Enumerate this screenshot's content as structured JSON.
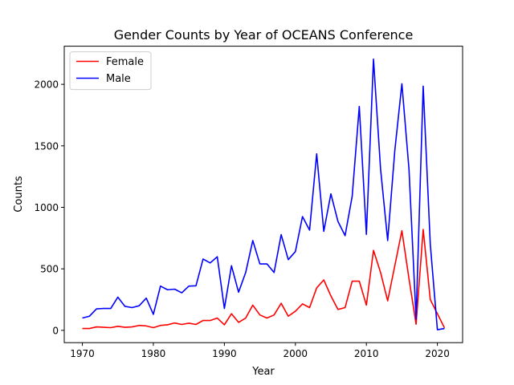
{
  "chart_data": {
    "type": "line",
    "title": "Gender Counts by Year of OCEANS Conference",
    "xlabel": "Year",
    "ylabel": "Counts",
    "xlim": [
      1967.45,
      2023.55
    ],
    "ylim": [
      -100,
      2310
    ],
    "xticks": [
      1970,
      1980,
      1990,
      2000,
      2010,
      2020
    ],
    "yticks": [
      0,
      500,
      1000,
      1500,
      2000
    ],
    "legend_position": "upper-left",
    "grid": false,
    "series": [
      {
        "name": "Female",
        "color": "#ff0000",
        "points": [
          [
            1970,
            15
          ],
          [
            1971,
            15
          ],
          [
            1972,
            28
          ],
          [
            1973,
            25
          ],
          [
            1974,
            22
          ],
          [
            1975,
            33
          ],
          [
            1976,
            25
          ],
          [
            1977,
            28
          ],
          [
            1978,
            40
          ],
          [
            1979,
            36
          ],
          [
            1980,
            22
          ],
          [
            1981,
            40
          ],
          [
            1982,
            45
          ],
          [
            1983,
            60
          ],
          [
            1984,
            48
          ],
          [
            1985,
            58
          ],
          [
            1986,
            48
          ],
          [
            1987,
            80
          ],
          [
            1988,
            80
          ],
          [
            1989,
            100
          ],
          [
            1990,
            45
          ],
          [
            1991,
            135
          ],
          [
            1992,
            65
          ],
          [
            1993,
            100
          ],
          [
            1994,
            205
          ],
          [
            1995,
            125
          ],
          [
            1996,
            100
          ],
          [
            1997,
            125
          ],
          [
            1998,
            220
          ],
          [
            1999,
            115
          ],
          [
            2000,
            155
          ],
          [
            2001,
            215
          ],
          [
            2002,
            185
          ],
          [
            2003,
            345
          ],
          [
            2004,
            410
          ],
          [
            2005,
            280
          ],
          [
            2006,
            170
          ],
          [
            2007,
            185
          ],
          [
            2008,
            400
          ],
          [
            2009,
            400
          ],
          [
            2010,
            205
          ],
          [
            2011,
            650
          ],
          [
            2012,
            470
          ],
          [
            2013,
            240
          ],
          [
            2014,
            525
          ],
          [
            2015,
            810
          ],
          [
            2016,
            420
          ],
          [
            2017,
            50
          ],
          [
            2018,
            820
          ],
          [
            2019,
            250
          ],
          [
            2020,
            135
          ],
          [
            2021,
            20
          ]
        ]
      },
      {
        "name": "Male",
        "color": "#0000ff",
        "points": [
          [
            1970,
            100
          ],
          [
            1971,
            115
          ],
          [
            1972,
            175
          ],
          [
            1973,
            178
          ],
          [
            1974,
            178
          ],
          [
            1975,
            270
          ],
          [
            1976,
            195
          ],
          [
            1977,
            185
          ],
          [
            1978,
            200
          ],
          [
            1979,
            262
          ],
          [
            1980,
            130
          ],
          [
            1981,
            360
          ],
          [
            1982,
            330
          ],
          [
            1983,
            335
          ],
          [
            1984,
            305
          ],
          [
            1985,
            360
          ],
          [
            1986,
            362
          ],
          [
            1987,
            580
          ],
          [
            1988,
            548
          ],
          [
            1989,
            598
          ],
          [
            1990,
            178
          ],
          [
            1991,
            525
          ],
          [
            1992,
            310
          ],
          [
            1993,
            470
          ],
          [
            1994,
            730
          ],
          [
            1995,
            540
          ],
          [
            1996,
            540
          ],
          [
            1997,
            470
          ],
          [
            1998,
            778
          ],
          [
            1999,
            575
          ],
          [
            2000,
            640
          ],
          [
            2001,
            925
          ],
          [
            2002,
            815
          ],
          [
            2003,
            1435
          ],
          [
            2004,
            805
          ],
          [
            2005,
            1110
          ],
          [
            2006,
            885
          ],
          [
            2007,
            770
          ],
          [
            2008,
            1090
          ],
          [
            2009,
            1820
          ],
          [
            2010,
            780
          ],
          [
            2011,
            2205
          ],
          [
            2012,
            1310
          ],
          [
            2013,
            730
          ],
          [
            2014,
            1460
          ],
          [
            2015,
            2005
          ],
          [
            2016,
            1310
          ],
          [
            2017,
            90
          ],
          [
            2018,
            1985
          ],
          [
            2019,
            700
          ],
          [
            2020,
            5
          ],
          [
            2021,
            15
          ]
        ]
      }
    ]
  }
}
